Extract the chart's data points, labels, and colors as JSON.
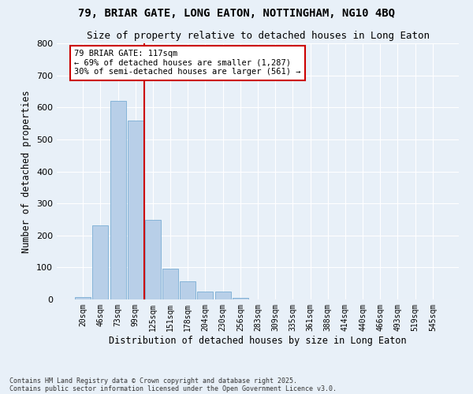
{
  "title1": "79, BRIAR GATE, LONG EATON, NOTTINGHAM, NG10 4BQ",
  "title2": "Size of property relative to detached houses in Long Eaton",
  "xlabel": "Distribution of detached houses by size in Long Eaton",
  "ylabel": "Number of detached properties",
  "categories": [
    "20sqm",
    "46sqm",
    "73sqm",
    "99sqm",
    "125sqm",
    "151sqm",
    "178sqm",
    "204sqm",
    "230sqm",
    "256sqm",
    "283sqm",
    "309sqm",
    "335sqm",
    "361sqm",
    "388sqm",
    "414sqm",
    "440sqm",
    "466sqm",
    "493sqm",
    "519sqm",
    "545sqm"
  ],
  "values": [
    8,
    232,
    621,
    560,
    248,
    97,
    57,
    25,
    25,
    5,
    0,
    0,
    0,
    0,
    0,
    0,
    0,
    0,
    0,
    0,
    0
  ],
  "bar_color": "#b8cfe8",
  "bar_edge_color": "#7aadd4",
  "vline_color": "#cc0000",
  "annotation_text": "79 BRIAR GATE: 117sqm\n← 69% of detached houses are smaller (1,287)\n30% of semi-detached houses are larger (561) →",
  "annotation_box_color": "#ffffff",
  "annotation_box_edge": "#cc0000",
  "background_color": "#e8f0f8",
  "grid_color": "#ffffff",
  "footnote1": "Contains HM Land Registry data © Crown copyright and database right 2025.",
  "footnote2": "Contains public sector information licensed under the Open Government Licence v3.0.",
  "ylim": [
    0,
    800
  ],
  "yticks": [
    0,
    100,
    200,
    300,
    400,
    500,
    600,
    700,
    800
  ],
  "vline_pos": 3.5
}
